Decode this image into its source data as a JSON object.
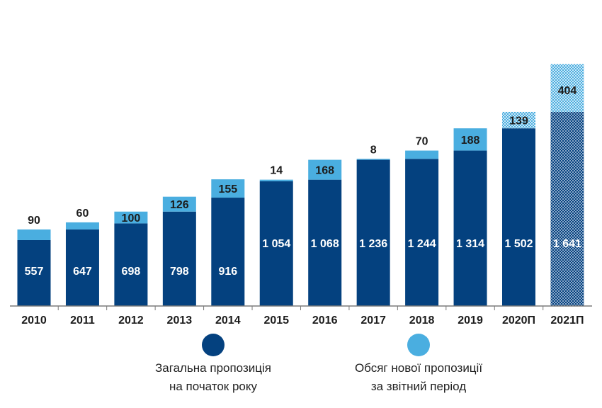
{
  "colors": {
    "base": "#04417f",
    "added": "#4aaee0",
    "axis": "#7a7a7a",
    "text": "#1c1c1c"
  },
  "chart_data": {
    "type": "bar",
    "stacked": true,
    "categories": [
      "2010",
      "2011",
      "2012",
      "2013",
      "2014",
      "2015",
      "2016",
      "2017",
      "2018",
      "2019",
      "2020П",
      "2021П"
    ],
    "series": [
      {
        "name": "Загальна пропозиція на початок року",
        "values": [
          557,
          647,
          698,
          798,
          916,
          1054,
          1068,
          1236,
          1244,
          1314,
          1502,
          1641
        ]
      },
      {
        "name": "Обсяг нової пропозиції за звітний період",
        "values": [
          90,
          60,
          100,
          126,
          155,
          14,
          168,
          8,
          70,
          188,
          139,
          404
        ]
      }
    ],
    "base_labels": [
      "557",
      "647",
      "698",
      "798",
      "916",
      "1 054",
      "1 068",
      "1 236",
      "1 244",
      "1 314",
      "1 502",
      "1 641"
    ],
    "added_labels": [
      "90",
      "60",
      "100",
      "126",
      "155",
      "14",
      "168",
      "8",
      "70",
      "188",
      "139",
      "404"
    ],
    "forecast_style": {
      "2020П": "hatched-added",
      "2021П": "hatched-all"
    },
    "ylim": [
      0,
      2100
    ],
    "grid": false,
    "legend": {
      "base": [
        "Загальна пропозиція",
        "на початок року"
      ],
      "added": [
        "Обсяг нової пропозиції",
        "за звітний період"
      ]
    }
  }
}
